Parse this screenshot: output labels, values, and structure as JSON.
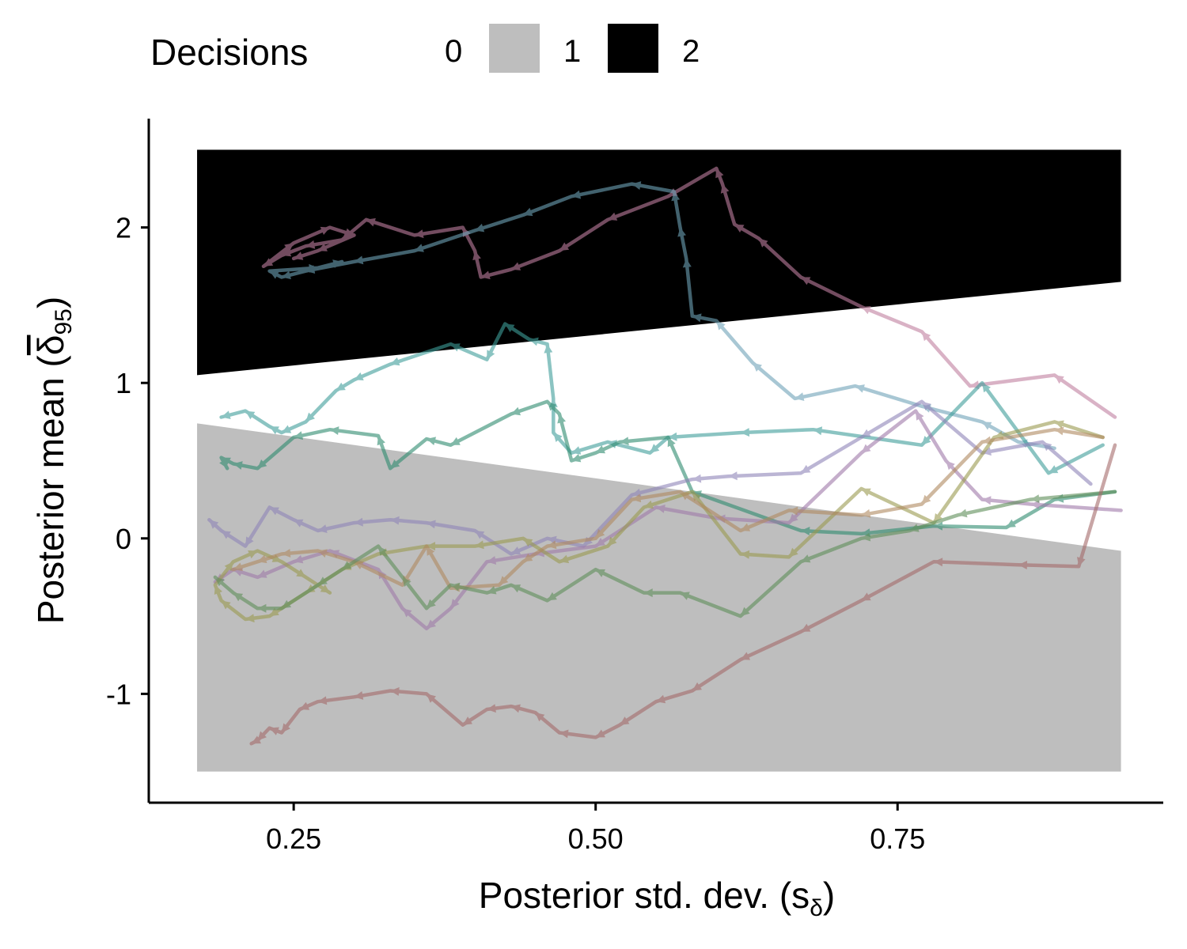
{
  "chart_data": {
    "type": "line",
    "title": "",
    "xlabel": "Posterior std. dev. (s",
    "xlabel_sub": "δ",
    "xlabel_close": ")",
    "ylabel": "Posterior mean (",
    "ylabel_symbol": "δ",
    "ylabel_sub": "95",
    "ylabel_close": ")",
    "xlim": [
      0.13,
      0.97
    ],
    "ylim": [
      -1.7,
      2.7
    ],
    "x_ticks": [
      0.25,
      0.5,
      0.75
    ],
    "x_tick_labels": [
      "0.25",
      "0.50",
      "0.75"
    ],
    "y_ticks": [
      -1,
      0,
      1,
      2
    ],
    "y_tick_labels": [
      "-1",
      "0",
      "1",
      "2"
    ],
    "legend": {
      "title": "Decisions",
      "position": "top",
      "entries": [
        {
          "label": "0",
          "color": "#ffffff"
        },
        {
          "label": "1",
          "color": "#bebebe"
        },
        {
          "label": "2",
          "color": "#000000"
        }
      ]
    },
    "regions": [
      {
        "decision": 1,
        "color": "#bebebe",
        "x_range": [
          0.17,
          0.935
        ],
        "y_bottom": -1.5,
        "upper_boundary": [
          [
            0.17,
            0.74
          ],
          [
            0.935,
            -0.08
          ]
        ]
      },
      {
        "decision": 2,
        "color": "#000000",
        "x_range": [
          0.17,
          0.935
        ],
        "y_top": 2.5,
        "lower_boundary": [
          [
            0.17,
            1.05
          ],
          [
            0.935,
            1.65
          ]
        ]
      }
    ],
    "series": [
      {
        "name": "path-1",
        "color": "#c07fa0",
        "values": [
          [
            0.93,
            0.78
          ],
          [
            0.88,
            1.05
          ],
          [
            0.81,
            0.98
          ],
          [
            0.77,
            1.33
          ],
          [
            0.72,
            1.49
          ],
          [
            0.67,
            1.68
          ],
          [
            0.635,
            1.93
          ],
          [
            0.615,
            2.02
          ],
          [
            0.605,
            2.28
          ],
          [
            0.6,
            2.38
          ],
          [
            0.56,
            2.2
          ],
          [
            0.51,
            2.05
          ],
          [
            0.47,
            1.85
          ],
          [
            0.43,
            1.73
          ],
          [
            0.405,
            1.68
          ],
          [
            0.4,
            1.85
          ],
          [
            0.39,
            2.0
          ],
          [
            0.35,
            1.95
          ],
          [
            0.31,
            2.05
          ],
          [
            0.29,
            1.92
          ],
          [
            0.26,
            1.88
          ],
          [
            0.24,
            1.82
          ],
          [
            0.225,
            1.75
          ],
          [
            0.25,
            1.9
          ],
          [
            0.28,
            2.0
          ],
          [
            0.3,
            1.95
          ],
          [
            0.27,
            1.85
          ],
          [
            0.25,
            1.8
          ]
        ]
      },
      {
        "name": "path-2",
        "color": "#6fa3b8",
        "values": [
          [
            0.88,
            0.58
          ],
          [
            0.85,
            0.62
          ],
          [
            0.82,
            0.75
          ],
          [
            0.77,
            0.85
          ],
          [
            0.715,
            0.98
          ],
          [
            0.665,
            0.9
          ],
          [
            0.63,
            1.13
          ],
          [
            0.6,
            1.4
          ],
          [
            0.58,
            1.43
          ],
          [
            0.575,
            1.8
          ],
          [
            0.57,
            2.0
          ],
          [
            0.565,
            2.23
          ],
          [
            0.53,
            2.28
          ],
          [
            0.48,
            2.2
          ],
          [
            0.44,
            2.08
          ],
          [
            0.4,
            1.98
          ],
          [
            0.35,
            1.85
          ],
          [
            0.3,
            1.78
          ],
          [
            0.26,
            1.72
          ],
          [
            0.24,
            1.68
          ],
          [
            0.23,
            1.72
          ],
          [
            0.27,
            1.74
          ],
          [
            0.29,
            1.78
          ]
        ]
      },
      {
        "name": "path-3",
        "color": "#3f9e9a",
        "values": [
          [
            0.92,
            0.6
          ],
          [
            0.875,
            0.42
          ],
          [
            0.82,
            1.0
          ],
          [
            0.77,
            0.6
          ],
          [
            0.68,
            0.7
          ],
          [
            0.62,
            0.68
          ],
          [
            0.56,
            0.65
          ],
          [
            0.545,
            0.55
          ],
          [
            0.51,
            0.62
          ],
          [
            0.48,
            0.55
          ],
          [
            0.465,
            0.68
          ],
          [
            0.465,
            0.9
          ],
          [
            0.46,
            1.25
          ],
          [
            0.445,
            1.28
          ],
          [
            0.425,
            1.38
          ],
          [
            0.41,
            1.15
          ],
          [
            0.38,
            1.25
          ],
          [
            0.33,
            1.12
          ],
          [
            0.3,
            1.02
          ],
          [
            0.285,
            0.95
          ],
          [
            0.26,
            0.75
          ],
          [
            0.24,
            0.68
          ],
          [
            0.23,
            0.72
          ],
          [
            0.21,
            0.82
          ],
          [
            0.19,
            0.78
          ]
        ]
      },
      {
        "name": "path-4",
        "color": "#2e8b6f",
        "values": [
          [
            0.93,
            0.3
          ],
          [
            0.88,
            0.25
          ],
          [
            0.84,
            0.07
          ],
          [
            0.78,
            0.08
          ],
          [
            0.72,
            0.03
          ],
          [
            0.67,
            0.05
          ],
          [
            0.58,
            0.3
          ],
          [
            0.56,
            0.65
          ],
          [
            0.52,
            0.62
          ],
          [
            0.5,
            0.55
          ],
          [
            0.48,
            0.5
          ],
          [
            0.47,
            0.8
          ],
          [
            0.46,
            0.88
          ],
          [
            0.43,
            0.8
          ],
          [
            0.38,
            0.6
          ],
          [
            0.36,
            0.64
          ],
          [
            0.33,
            0.45
          ],
          [
            0.32,
            0.66
          ],
          [
            0.28,
            0.7
          ],
          [
            0.25,
            0.65
          ],
          [
            0.22,
            0.45
          ],
          [
            0.2,
            0.48
          ],
          [
            0.19,
            0.52
          ],
          [
            0.195,
            0.45
          ]
        ]
      },
      {
        "name": "path-5",
        "color": "#8f84b8",
        "values": [
          [
            0.91,
            0.35
          ],
          [
            0.87,
            0.62
          ],
          [
            0.82,
            0.55
          ],
          [
            0.77,
            0.88
          ],
          [
            0.72,
            0.65
          ],
          [
            0.67,
            0.42
          ],
          [
            0.61,
            0.4
          ],
          [
            0.58,
            0.38
          ],
          [
            0.53,
            0.28
          ],
          [
            0.49,
            -0.05
          ],
          [
            0.46,
            0.0
          ],
          [
            0.43,
            -0.1
          ],
          [
            0.4,
            0.05
          ],
          [
            0.36,
            0.1
          ],
          [
            0.33,
            0.12
          ],
          [
            0.3,
            0.1
          ],
          [
            0.27,
            0.05
          ],
          [
            0.25,
            0.12
          ],
          [
            0.23,
            0.2
          ],
          [
            0.21,
            -0.05
          ],
          [
            0.19,
            0.05
          ],
          [
            0.18,
            0.12
          ]
        ]
      },
      {
        "name": "path-6",
        "color": "#a07aaa",
        "values": [
          [
            0.935,
            0.18
          ],
          [
            0.86,
            0.22
          ],
          [
            0.82,
            0.25
          ],
          [
            0.79,
            0.5
          ],
          [
            0.765,
            0.82
          ],
          [
            0.72,
            0.55
          ],
          [
            0.66,
            0.1
          ],
          [
            0.6,
            0.13
          ],
          [
            0.55,
            0.2
          ],
          [
            0.5,
            -0.05
          ],
          [
            0.45,
            -0.1
          ],
          [
            0.41,
            -0.15
          ],
          [
            0.38,
            -0.45
          ],
          [
            0.36,
            -0.58
          ],
          [
            0.34,
            -0.45
          ],
          [
            0.32,
            -0.2
          ],
          [
            0.28,
            -0.08
          ],
          [
            0.25,
            -0.15
          ],
          [
            0.22,
            -0.25
          ],
          [
            0.2,
            -0.2
          ],
          [
            0.185,
            -0.28
          ]
        ]
      },
      {
        "name": "path-7",
        "color": "#9a9a50",
        "values": [
          [
            0.92,
            0.65
          ],
          [
            0.88,
            0.75
          ],
          [
            0.83,
            0.65
          ],
          [
            0.78,
            0.1
          ],
          [
            0.72,
            0.32
          ],
          [
            0.66,
            -0.12
          ],
          [
            0.62,
            -0.1
          ],
          [
            0.58,
            0.3
          ],
          [
            0.54,
            0.2
          ],
          [
            0.51,
            -0.05
          ],
          [
            0.47,
            -0.15
          ],
          [
            0.44,
            0.0
          ],
          [
            0.4,
            -0.05
          ],
          [
            0.36,
            -0.05
          ],
          [
            0.32,
            -0.1
          ],
          [
            0.29,
            -0.2
          ],
          [
            0.26,
            -0.35
          ],
          [
            0.23,
            -0.5
          ],
          [
            0.21,
            -0.52
          ],
          [
            0.19,
            -0.4
          ],
          [
            0.185,
            -0.3
          ],
          [
            0.2,
            -0.15
          ],
          [
            0.22,
            -0.08
          ],
          [
            0.24,
            -0.15
          ],
          [
            0.26,
            -0.25
          ],
          [
            0.28,
            -0.35
          ]
        ]
      },
      {
        "name": "path-8",
        "color": "#b08a60",
        "values": [
          [
            0.92,
            0.65
          ],
          [
            0.88,
            0.7
          ],
          [
            0.82,
            0.62
          ],
          [
            0.77,
            0.22
          ],
          [
            0.72,
            0.15
          ],
          [
            0.66,
            0.18
          ],
          [
            0.62,
            0.05
          ],
          [
            0.57,
            0.3
          ],
          [
            0.53,
            0.25
          ],
          [
            0.5,
            0.0
          ],
          [
            0.46,
            -0.05
          ],
          [
            0.44,
            -0.15
          ],
          [
            0.42,
            -0.3
          ],
          [
            0.38,
            -0.32
          ],
          [
            0.36,
            -0.05
          ],
          [
            0.34,
            -0.3
          ],
          [
            0.3,
            -0.15
          ],
          [
            0.27,
            -0.08
          ],
          [
            0.24,
            -0.1
          ],
          [
            0.22,
            -0.15
          ],
          [
            0.2,
            -0.2
          ]
        ]
      },
      {
        "name": "path-9",
        "color": "#5f8f5a",
        "values": [
          [
            0.93,
            0.3
          ],
          [
            0.86,
            0.25
          ],
          [
            0.8,
            0.15
          ],
          [
            0.76,
            0.05
          ],
          [
            0.72,
            0.0
          ],
          [
            0.67,
            -0.15
          ],
          [
            0.62,
            -0.5
          ],
          [
            0.57,
            -0.35
          ],
          [
            0.54,
            -0.35
          ],
          [
            0.5,
            -0.2
          ],
          [
            0.46,
            -0.4
          ],
          [
            0.43,
            -0.3
          ],
          [
            0.41,
            -0.35
          ],
          [
            0.38,
            -0.3
          ],
          [
            0.36,
            -0.45
          ],
          [
            0.34,
            -0.25
          ],
          [
            0.32,
            -0.05
          ],
          [
            0.29,
            -0.2
          ],
          [
            0.27,
            -0.3
          ],
          [
            0.24,
            -0.45
          ],
          [
            0.22,
            -0.45
          ],
          [
            0.2,
            -0.35
          ],
          [
            0.185,
            -0.25
          ]
        ]
      },
      {
        "name": "path-10",
        "color": "#a56a6a",
        "values": [
          [
            0.93,
            0.6
          ],
          [
            0.9,
            -0.18
          ],
          [
            0.85,
            -0.17
          ],
          [
            0.78,
            -0.15
          ],
          [
            0.72,
            -0.4
          ],
          [
            0.67,
            -0.6
          ],
          [
            0.62,
            -0.78
          ],
          [
            0.58,
            -0.98
          ],
          [
            0.55,
            -1.05
          ],
          [
            0.52,
            -1.2
          ],
          [
            0.5,
            -1.28
          ],
          [
            0.47,
            -1.25
          ],
          [
            0.45,
            -1.12
          ],
          [
            0.43,
            -1.08
          ],
          [
            0.41,
            -1.1
          ],
          [
            0.39,
            -1.2
          ],
          [
            0.36,
            -1.0
          ],
          [
            0.33,
            -0.98
          ],
          [
            0.3,
            -1.02
          ],
          [
            0.27,
            -1.05
          ],
          [
            0.255,
            -1.1
          ],
          [
            0.24,
            -1.25
          ],
          [
            0.23,
            -1.22
          ],
          [
            0.22,
            -1.3
          ],
          [
            0.215,
            -1.32
          ]
        ]
      }
    ]
  }
}
